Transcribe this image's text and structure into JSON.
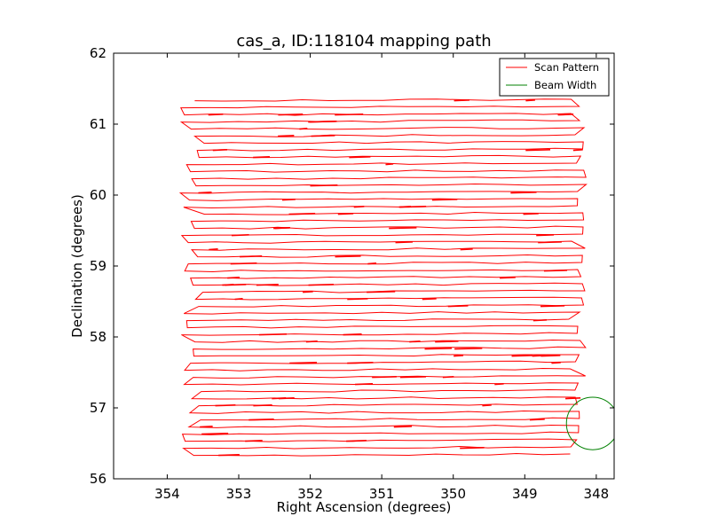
{
  "chart_data": {
    "type": "line",
    "title": "cas_a, ID:118104 mapping path",
    "xlabel": "Right Ascension (degrees)",
    "ylabel": "Declination (degrees)",
    "xlim": [
      354.75,
      347.75
    ],
    "ylim": [
      56,
      62
    ],
    "x_inverted": true,
    "xticks": [
      354,
      353,
      352,
      351,
      350,
      349,
      348
    ],
    "yticks": [
      56,
      57,
      58,
      59,
      60,
      61,
      62
    ],
    "grid": false,
    "legend_position": "top-right",
    "series": [
      {
        "name": "Scan Pattern",
        "color": "#ff0000",
        "kind": "raster-scan",
        "ra_range": [
          353.6,
          348.3
        ],
        "dec_range": [
          56.33,
          61.29
        ],
        "row_spacing": 0.1
      },
      {
        "name": "Beam Width",
        "color": "#008000",
        "kind": "circle",
        "center": [
          348.05,
          56.78
        ],
        "radius_dec": 0.37
      }
    ]
  }
}
